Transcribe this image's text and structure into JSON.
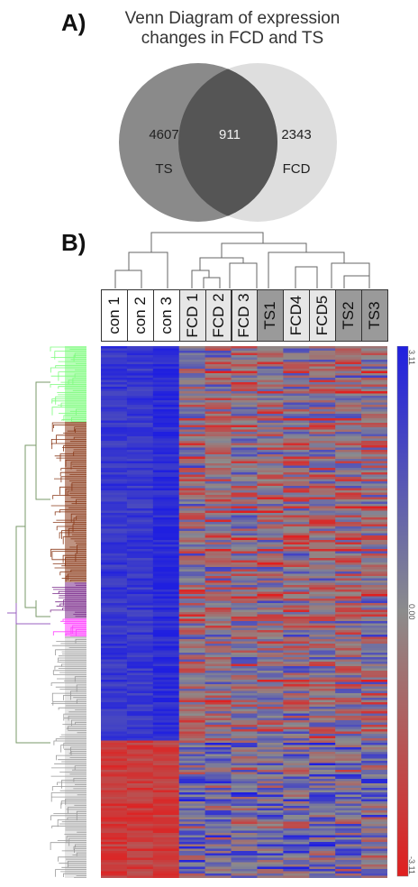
{
  "panel_a": {
    "label": "A)",
    "title_line1": "Venn Diagram of expression",
    "title_line2": "changes in FCD and TS",
    "left_set": {
      "name": "TS",
      "count": "4607",
      "color": "#8a8a8a"
    },
    "right_set": {
      "name": "FCD",
      "count": "2343",
      "color": "#dedede"
    },
    "intersection": {
      "count": "911",
      "color": "#555555"
    }
  },
  "panel_b": {
    "label": "B)",
    "columns": [
      {
        "label": "con 1",
        "group": "con"
      },
      {
        "label": "con 2",
        "group": "con"
      },
      {
        "label": "con 3",
        "group": "con"
      },
      {
        "label": "FCD 1",
        "group": "fcd"
      },
      {
        "label": "FCD 2",
        "group": "fcd"
      },
      {
        "label": "FCD 3",
        "group": "fcd"
      },
      {
        "label": "TS1",
        "group": "ts"
      },
      {
        "label": "FCD4",
        "group": "fcd"
      },
      {
        "label": "FCD5",
        "group": "fcd"
      },
      {
        "label": "TS2",
        "group": "ts"
      },
      {
        "label": "TS3",
        "group": "ts"
      }
    ],
    "group_colors": {
      "con": "#ffffff",
      "fcd": "#e6e6e6",
      "ts": "#9a9a9a"
    },
    "heatmap_colors": {
      "high": "#1f1fe0",
      "mid": "#8c8c8c",
      "low": "#e01f1f"
    },
    "cluster_colors": [
      "#7cfc7c",
      "#8b3a1a",
      "#7a2a8a",
      "#ff40ff",
      "#999999"
    ],
    "color_scale": {
      "top_label": "3.11",
      "mid_label": "0.00",
      "bottom_label": "-3.11"
    }
  }
}
